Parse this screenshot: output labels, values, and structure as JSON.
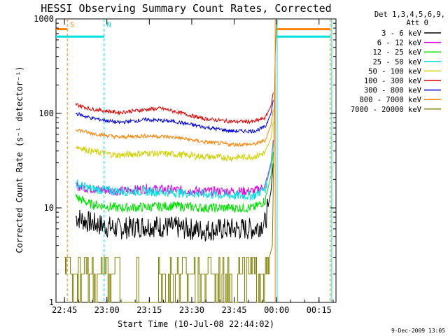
{
  "chart_data": {
    "type": "line",
    "title": "HESSI Observing Summary Count Rates, Corrected",
    "xlabel": "Start Time (10-Jul-08 22:44:02)",
    "ylabel": "Corrected Count Rate (s⁻¹ detector⁻¹)",
    "yscale": "log",
    "ylim": [
      1,
      1000
    ],
    "xlim_minutes_from_start": [
      -2,
      97
    ],
    "x_tick_labels": [
      "22:45",
      "23:00",
      "23:15",
      "23:30",
      "23:45",
      "00:00",
      "00:15"
    ],
    "y_tick_labels": [
      "1",
      "10",
      "100",
      "1000"
    ],
    "y_ticks": [
      1,
      10,
      100,
      1000
    ],
    "legend_header": [
      "Det 1,3,4,5,6,9,",
      "Att 0"
    ],
    "legend_position": "right",
    "series": [
      {
        "name": "3 - 6 keV",
        "color": "#000000",
        "points": [
          [
            5,
            8
          ],
          [
            10,
            7
          ],
          [
            20,
            6
          ],
          [
            30,
            6.5
          ],
          [
            40,
            6.2
          ],
          [
            50,
            5.8
          ],
          [
            60,
            6.0
          ],
          [
            68,
            6.0
          ],
          [
            72,
            7
          ],
          [
            74,
            15
          ],
          [
            75,
            35
          ]
        ]
      },
      {
        "name": "6 - 12 keV",
        "color": "#e000e0",
        "points": [
          [
            5,
            17
          ],
          [
            10,
            16
          ],
          [
            20,
            15
          ],
          [
            30,
            16
          ],
          [
            40,
            15.5
          ],
          [
            50,
            15
          ],
          [
            60,
            15
          ],
          [
            68,
            15
          ],
          [
            72,
            17
          ],
          [
            74,
            30
          ],
          [
            75,
            60
          ]
        ]
      },
      {
        "name": "12 - 25 keV",
        "color": "#00e000",
        "points": [
          [
            5,
            13
          ],
          [
            10,
            11
          ],
          [
            20,
            10
          ],
          [
            30,
            10.2
          ],
          [
            40,
            10.5
          ],
          [
            50,
            10
          ],
          [
            60,
            10
          ],
          [
            68,
            10
          ],
          [
            72,
            12
          ],
          [
            74,
            22
          ],
          [
            75,
            45
          ]
        ]
      },
      {
        "name": "25 - 50 keV",
        "color": "#00e0e0",
        "points": [
          [
            5,
            18
          ],
          [
            10,
            16
          ],
          [
            20,
            15
          ],
          [
            30,
            15
          ],
          [
            40,
            14.5
          ],
          [
            50,
            14
          ],
          [
            60,
            13.5
          ],
          [
            68,
            13.5
          ],
          [
            72,
            16
          ],
          [
            74,
            28
          ],
          [
            75,
            55
          ]
        ]
      },
      {
        "name": "50 - 100 keV",
        "color": "#d0d000",
        "points": [
          [
            5,
            45
          ],
          [
            10,
            40
          ],
          [
            20,
            36
          ],
          [
            30,
            38
          ],
          [
            40,
            37
          ],
          [
            50,
            35
          ],
          [
            60,
            34
          ],
          [
            68,
            35
          ],
          [
            72,
            38
          ],
          [
            74,
            55
          ],
          [
            75,
            90
          ]
        ]
      },
      {
        "name": "100 - 300 keV",
        "color": "#e00000",
        "points": [
          [
            5,
            125
          ],
          [
            10,
            112
          ],
          [
            20,
            102
          ],
          [
            30,
            110
          ],
          [
            35,
            113
          ],
          [
            40,
            105
          ],
          [
            50,
            88
          ],
          [
            60,
            82
          ],
          [
            68,
            82
          ],
          [
            72,
            90
          ],
          [
            74,
            120
          ],
          [
            75,
            180
          ]
        ]
      },
      {
        "name": "300 - 800 keV",
        "color": "#0000e0",
        "points": [
          [
            5,
            100
          ],
          [
            10,
            90
          ],
          [
            20,
            80
          ],
          [
            30,
            86
          ],
          [
            40,
            82
          ],
          [
            50,
            72
          ],
          [
            60,
            65
          ],
          [
            68,
            65
          ],
          [
            72,
            72
          ],
          [
            74,
            100
          ],
          [
            75,
            150
          ]
        ]
      },
      {
        "name": "800 - 7000 keV",
        "color": "#ff7f00",
        "points": [
          [
            5,
            68
          ],
          [
            10,
            62
          ],
          [
            20,
            56
          ],
          [
            30,
            58
          ],
          [
            40,
            56
          ],
          [
            50,
            50
          ],
          [
            60,
            47
          ],
          [
            68,
            47
          ],
          [
            72,
            52
          ],
          [
            74,
            75
          ],
          [
            75,
            120
          ]
        ]
      },
      {
        "name": "7000 - 20000 keV",
        "color": "#808000",
        "points": [
          [
            1,
            2.5
          ],
          [
            5,
            2.2
          ],
          [
            10,
            2.0
          ],
          [
            20,
            2.0
          ],
          [
            30,
            2.2
          ],
          [
            40,
            2.0
          ],
          [
            50,
            2.0
          ],
          [
            60,
            2.0
          ],
          [
            68,
            2.0
          ],
          [
            73,
            2.0
          ],
          [
            74.5,
            4
          ],
          [
            75.5,
            400
          ],
          [
            76,
            1000
          ]
        ]
      }
    ],
    "annotations": [
      {
        "text": "S",
        "x": 2,
        "color": "#ff7f00"
      },
      {
        "text": "N",
        "x": 15,
        "color": "#00e0e0"
      }
    ]
  },
  "footer": "9-Dec-2009 13:05"
}
